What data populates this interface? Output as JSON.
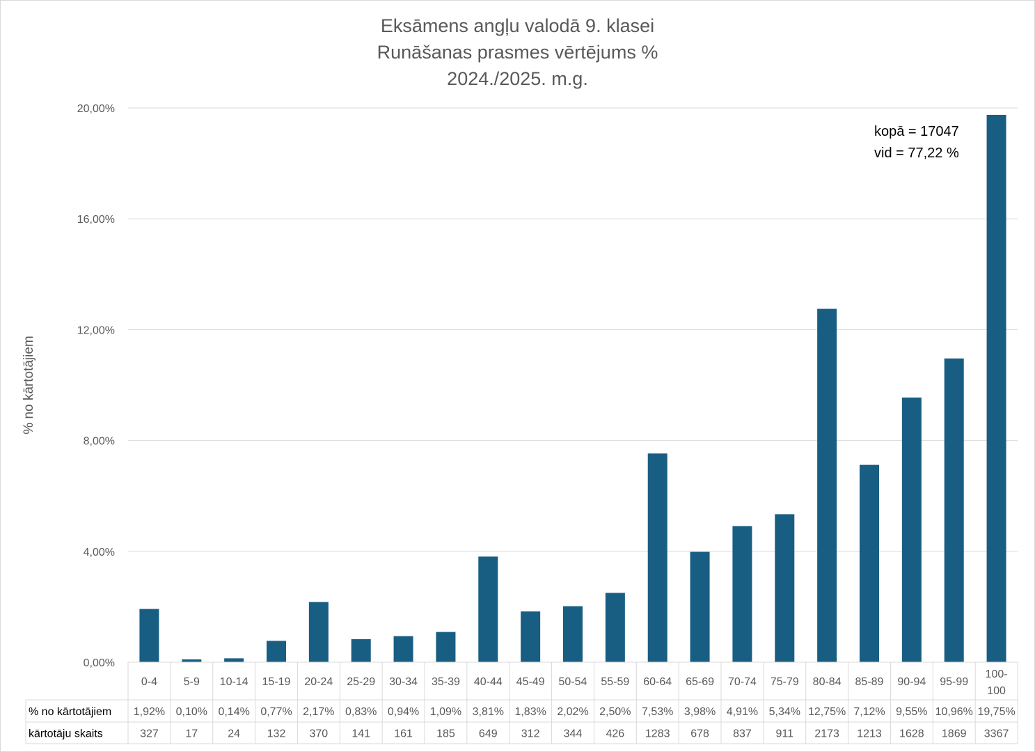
{
  "chart_data": {
    "type": "bar",
    "title": [
      "Eksāmens angļu valodā 9. klasei",
      "Runāšanas prasmes vērtējums %",
      "2024./2025. m.g."
    ],
    "ylabel": "% no kārtotājiem",
    "ylim": [
      0,
      20
    ],
    "yticks": [
      "0,00%",
      "4,00%",
      "8,00%",
      "12,00%",
      "16,00%",
      "20,00%"
    ],
    "grid": true,
    "bar_color": "#175e82",
    "annotation": [
      "kopā = 17047",
      "vid = 77,22 %"
    ],
    "categories": [
      "0-4",
      "5-9",
      "10-14",
      "15-19",
      "20-24",
      "25-29",
      "30-34",
      "35-39",
      "40-44",
      "45-49",
      "50-54",
      "55-59",
      "60-64",
      "65-69",
      "70-74",
      "75-79",
      "80-84",
      "85-89",
      "90-94",
      "95-99",
      "100-100"
    ],
    "category_labels": [
      [
        "0-4"
      ],
      [
        "5-9"
      ],
      [
        "10-14"
      ],
      [
        "15-19"
      ],
      [
        "20-24"
      ],
      [
        "25-29"
      ],
      [
        "30-34"
      ],
      [
        "35-39"
      ],
      [
        "40-44"
      ],
      [
        "45-49"
      ],
      [
        "50-54"
      ],
      [
        "55-59"
      ],
      [
        "60-64"
      ],
      [
        "65-69"
      ],
      [
        "70-74"
      ],
      [
        "75-79"
      ],
      [
        "80-84"
      ],
      [
        "85-89"
      ],
      [
        "90-94"
      ],
      [
        "95-99"
      ],
      [
        "100-",
        "100"
      ]
    ],
    "values": [
      1.92,
      0.1,
      0.14,
      0.77,
      2.17,
      0.83,
      0.94,
      1.09,
      3.81,
      1.83,
      2.02,
      2.5,
      7.53,
      3.98,
      4.91,
      5.34,
      12.75,
      7.12,
      9.55,
      10.96,
      19.75
    ],
    "table": {
      "rows": [
        {
          "label": "% no kārtotājiem",
          "cells": [
            "1,92%",
            "0,10%",
            "0,14%",
            "0,77%",
            "2,17%",
            "0,83%",
            "0,94%",
            "1,09%",
            "3,81%",
            "1,83%",
            "2,02%",
            "2,50%",
            "7,53%",
            "3,98%",
            "4,91%",
            "5,34%",
            "12,75%",
            "7,12%",
            "9,55%",
            "10,96%",
            "19,75%"
          ]
        },
        {
          "label": "kārtotāju skaits",
          "cells": [
            "327",
            "17",
            "24",
            "132",
            "370",
            "141",
            "161",
            "185",
            "649",
            "312",
            "344",
            "426",
            "1283",
            "678",
            "837",
            "911",
            "2173",
            "1213",
            "1628",
            "1869",
            "3367"
          ]
        }
      ]
    }
  }
}
